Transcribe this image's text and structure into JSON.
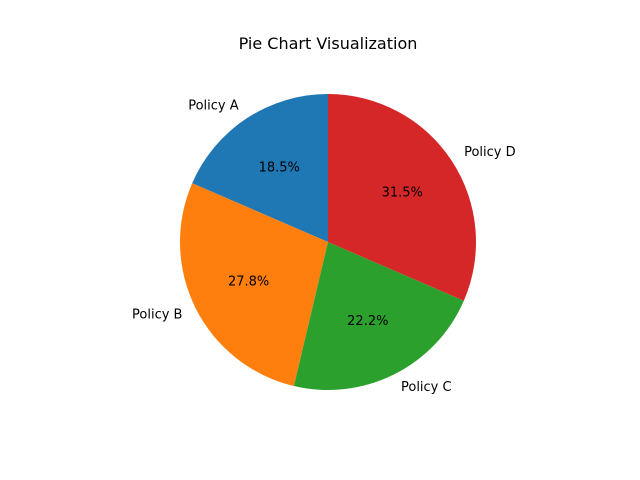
{
  "chart_data": {
    "type": "pie",
    "title": "Pie Chart Visualization",
    "slices": [
      {
        "label": "Policy A",
        "value": 18.5,
        "pct_label": "18.5%",
        "color": "#1f77b4"
      },
      {
        "label": "Policy B",
        "value": 27.8,
        "pct_label": "27.8%",
        "color": "#ff7f0e"
      },
      {
        "label": "Policy C",
        "value": 22.2,
        "pct_label": "22.2%",
        "color": "#2ca02c"
      },
      {
        "label": "Policy D",
        "value": 31.5,
        "pct_label": "31.5%",
        "color": "#d62728"
      }
    ],
    "start_angle_deg": 90,
    "direction": "counterclockwise",
    "legend": false
  }
}
